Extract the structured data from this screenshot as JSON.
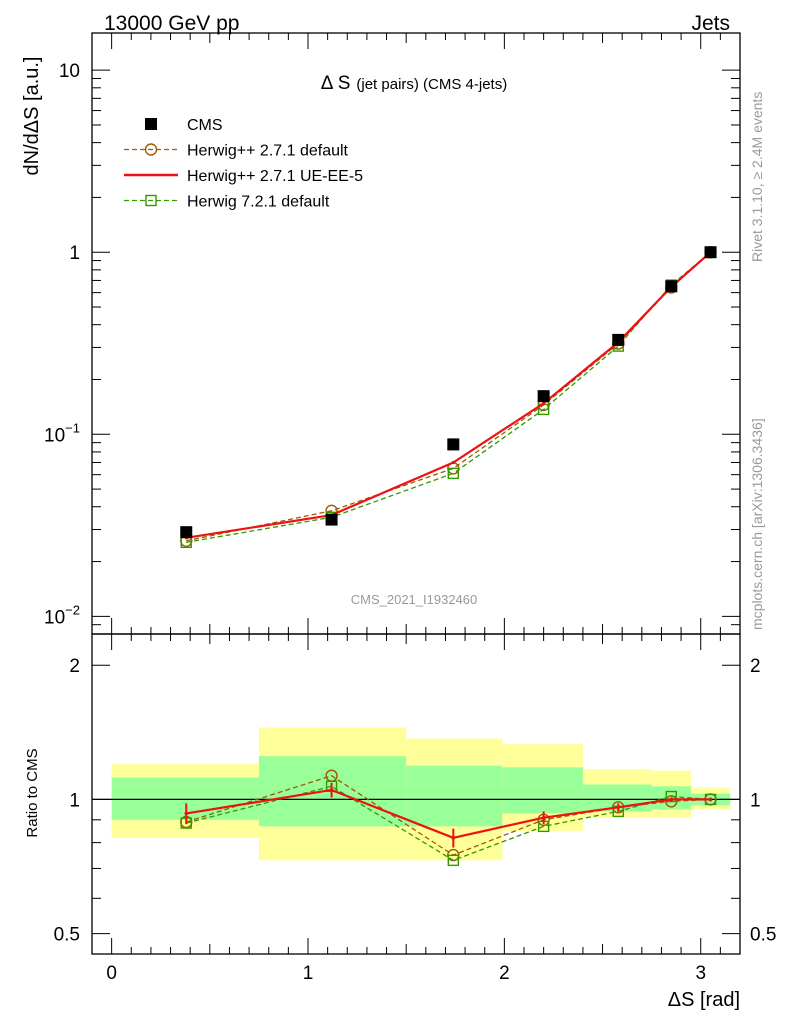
{
  "header": {
    "left": "13000 GeV pp",
    "right": "Jets"
  },
  "side_labels": {
    "rivet": "Rivet 3.1.10, ≥ 2.4M events",
    "mcplots": "mcplots.cern.ch [arXiv:1306.3436]"
  },
  "watermark": "CMS_2021_I1932460",
  "colors": {
    "data": "#000000",
    "herwigpp_default": "#a05a00",
    "herwigpp_ue": "#ee1111",
    "herwig7": "#339900",
    "band_inner": "#99ff99",
    "band_outer": "#ffff99"
  },
  "chart_data": [
    {
      "type": "line",
      "panel": "main",
      "title": "Δ S",
      "title_sub": "(jet pairs) (CMS 4-jets)",
      "ylabel": "dN/dΔS [a.u.]",
      "yscale": "log",
      "ylim": [
        0.008,
        16
      ],
      "xlim": [
        -0.1,
        3.2
      ],
      "y_tick_labels": [
        {
          "value": 10,
          "label": "10"
        },
        {
          "value": 1,
          "label": "1"
        },
        {
          "value": 0.1,
          "label": "10",
          "sup": "−1"
        },
        {
          "value": 0.01,
          "label": "10",
          "sup": "−2"
        }
      ],
      "legend": {
        "placement": "top-left"
      },
      "x": [
        0.38,
        1.12,
        1.74,
        2.2,
        2.58,
        2.85,
        3.05
      ],
      "series": [
        {
          "name": "CMS",
          "marker": "square-filled",
          "values": [
            0.029,
            0.034,
            0.088,
            0.162,
            0.33,
            0.65,
            1.0
          ]
        },
        {
          "name": "Herwig++ 2.7.1 default",
          "marker": "circle-open",
          "dashed": true,
          "values": [
            0.026,
            0.038,
            0.065,
            0.145,
            0.315,
            0.64,
            1.0
          ]
        },
        {
          "name": "Herwig++ 2.7.1 UE-EE-5",
          "marker": "none",
          "dashed": false,
          "values": [
            0.027,
            0.036,
            0.07,
            0.148,
            0.32,
            0.645,
            1.0
          ]
        },
        {
          "name": "Herwig 7.2.1 default",
          "marker": "square-open",
          "dashed": true,
          "values": [
            0.0255,
            0.035,
            0.061,
            0.137,
            0.305,
            0.66,
            1.0
          ]
        }
      ]
    },
    {
      "type": "line",
      "panel": "ratio",
      "ylabel": "Ratio to CMS",
      "xlabel": "ΔS [rad]",
      "ylim": [
        0.45,
        2.35
      ],
      "yscale": "log",
      "xlim": [
        -0.1,
        3.2
      ],
      "x_tick_labels": [
        "0",
        "1",
        "2",
        "3"
      ],
      "y_tick_labels": [
        "0.5",
        "1",
        "2"
      ],
      "bins": [
        {
          "lo": 0.0,
          "hi": 0.75,
          "inner": [
            0.9,
            1.12
          ],
          "outer": [
            0.82,
            1.2
          ]
        },
        {
          "lo": 0.75,
          "hi": 1.5,
          "inner": [
            0.87,
            1.25
          ],
          "outer": [
            0.73,
            1.45
          ]
        },
        {
          "lo": 1.5,
          "hi": 1.99,
          "inner": [
            0.87,
            1.19
          ],
          "outer": [
            0.73,
            1.37
          ]
        },
        {
          "lo": 1.99,
          "hi": 2.4,
          "inner": [
            0.93,
            1.18
          ],
          "outer": [
            0.85,
            1.33
          ]
        },
        {
          "lo": 2.4,
          "hi": 2.75,
          "inner": [
            0.94,
            1.08
          ],
          "outer": [
            0.91,
            1.17
          ]
        },
        {
          "lo": 2.75,
          "hi": 2.95,
          "inner": [
            0.95,
            1.07
          ],
          "outer": [
            0.91,
            1.16
          ]
        },
        {
          "lo": 2.95,
          "hi": 3.15,
          "inner": [
            0.97,
            1.03
          ],
          "outer": [
            0.95,
            1.06
          ]
        }
      ],
      "x": [
        0.38,
        1.12,
        1.74,
        2.2,
        2.58,
        2.85,
        3.05
      ],
      "series": [
        {
          "name": "Herwig++ 2.7.1 default",
          "values": [
            0.89,
            1.13,
            0.75,
            0.9,
            0.96,
            0.99,
            1.0
          ]
        },
        {
          "name": "Herwig++ 2.7.1 UE-EE-5",
          "values": [
            0.93,
            1.05,
            0.82,
            0.91,
            0.96,
            1.0,
            1.0
          ],
          "err": [
            0.05,
            0.04,
            0.04,
            0.03,
            0.02,
            0.01,
            0.01
          ]
        },
        {
          "name": "Herwig 7.2.1 default",
          "values": [
            0.885,
            1.07,
            0.73,
            0.87,
            0.94,
            1.015,
            1.0
          ]
        }
      ]
    }
  ]
}
